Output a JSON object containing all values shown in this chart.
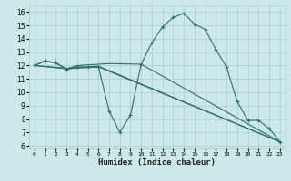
{
  "xlabel": "Humidex (Indice chaleur)",
  "bg_color": "#cde8e8",
  "grid_color": "#aacccc",
  "line_color": "#2e6e68",
  "xlim": [
    -0.5,
    23.5
  ],
  "ylim": [
    5.8,
    16.5
  ],
  "xticks": [
    0,
    1,
    2,
    3,
    4,
    5,
    6,
    7,
    8,
    9,
    10,
    11,
    12,
    13,
    14,
    15,
    16,
    17,
    18,
    19,
    20,
    21,
    22,
    23
  ],
  "yticks": [
    6,
    7,
    8,
    9,
    10,
    11,
    12,
    13,
    14,
    15,
    16
  ],
  "series": [
    {
      "x": [
        0,
        1,
        2,
        3,
        4,
        5,
        6,
        7,
        8,
        9,
        10,
        11,
        12,
        13,
        14,
        15,
        16,
        17,
        18,
        19,
        20,
        21,
        22,
        23
      ],
      "y": [
        12.0,
        12.35,
        12.2,
        11.7,
        11.9,
        11.9,
        11.9,
        8.6,
        7.0,
        8.3,
        12.1,
        13.7,
        14.9,
        15.6,
        15.9,
        15.1,
        14.7,
        13.2,
        11.9,
        9.3,
        7.9,
        7.9,
        7.3,
        6.3
      ],
      "marker": true
    },
    {
      "x": [
        0,
        1,
        2,
        3,
        4,
        5,
        6,
        7,
        10,
        23
      ],
      "y": [
        12.0,
        12.35,
        12.2,
        11.75,
        12.0,
        12.05,
        12.1,
        12.15,
        12.1,
        6.3
      ],
      "marker": false
    },
    {
      "x": [
        0,
        3,
        6,
        23
      ],
      "y": [
        12.0,
        11.75,
        11.9,
        6.3
      ],
      "marker": false
    },
    {
      "x": [
        0,
        3,
        6,
        23
      ],
      "y": [
        12.0,
        11.8,
        11.95,
        6.3
      ],
      "marker": false
    }
  ]
}
